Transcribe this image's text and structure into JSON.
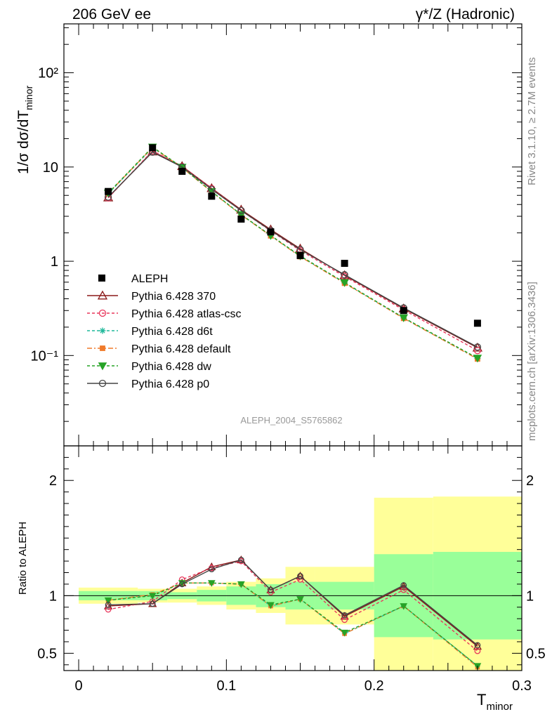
{
  "header": {
    "left": "206 GeV ee",
    "right": "γ*/Z (Hadronic)"
  },
  "side_labels": {
    "top": "Rivet 3.1.10, ≥ 2.7M events",
    "bottom": "mcplots.cern.ch [arXiv:1306.3436]"
  },
  "watermark": "ALEPH_2004_S5765862",
  "chart_data": {
    "type": "line",
    "xlabel": "T",
    "xlabel_sub": "minor",
    "ylabel_main": "1/σ  dσ/dT",
    "ylabel_main_sub": "minor",
    "ylabel_ratio": "Ratio to ALEPH",
    "xlim": [
      -0.01,
      0.3
    ],
    "ylim_main": [
      0.011,
      330
    ],
    "ylim_ratio": [
      0.35,
      2.3
    ],
    "yscale_main": "log",
    "x_ticks": [
      "0",
      "0.1",
      "0.2",
      "0.3"
    ],
    "y_ticks_main": [
      "10⁻¹",
      "1",
      "10",
      "10²"
    ],
    "y_ticks_ratio": [
      "0.5",
      "1",
      "2"
    ],
    "legend_position": "lower-left",
    "x": [
      0.02,
      0.05,
      0.07,
      0.09,
      0.11,
      0.13,
      0.15,
      0.18,
      0.22,
      0.27
    ],
    "bin_edges": [
      0.0,
      0.04,
      0.06,
      0.08,
      0.1,
      0.12,
      0.14,
      0.16,
      0.2,
      0.24,
      0.3
    ],
    "data": {
      "name": "ALEPH",
      "values": [
        5.5,
        16.0,
        9.0,
        4.9,
        2.8,
        2.05,
        1.15,
        0.95,
        0.3,
        0.22
      ]
    },
    "bands": {
      "stat": [
        [
          0.96,
          1.04
        ],
        [
          0.96,
          1.04
        ],
        [
          0.97,
          1.03
        ],
        [
          0.95,
          1.05
        ],
        [
          0.92,
          1.08
        ],
        [
          0.9,
          1.1
        ],
        [
          0.88,
          1.12
        ],
        [
          0.88,
          1.12
        ],
        [
          0.64,
          1.36
        ],
        [
          0.62,
          1.38
        ]
      ],
      "total": [
        [
          0.93,
          1.07
        ],
        [
          0.94,
          1.06
        ],
        [
          0.94,
          1.06
        ],
        [
          0.92,
          1.08
        ],
        [
          0.88,
          1.12
        ],
        [
          0.85,
          1.15
        ],
        [
          0.75,
          1.25
        ],
        [
          0.75,
          1.25
        ],
        [
          0.32,
          1.85
        ],
        [
          0.32,
          1.86
        ]
      ]
    },
    "series": [
      {
        "name": "Pythia 6.428 370",
        "color": "#8b1a1a",
        "dash": "",
        "marker": "triangle-open",
        "values": [
          4.75,
          14.6,
          10.2,
          5.95,
          3.52,
          2.17,
          1.36,
          0.71,
          0.315,
          0.121
        ],
        "ratio": [
          0.91,
          0.93,
          1.11,
          1.25,
          1.31,
          1.05,
          1.17,
          0.82,
          1.08,
          0.56
        ]
      },
      {
        "name": "Pythia 6.428 atlas-csc",
        "color": "#e8365b",
        "dash": "4,3",
        "marker": "circle-open",
        "values": [
          4.7,
          14.9,
          10.1,
          5.9,
          3.45,
          2.1,
          1.3,
          0.69,
          0.305,
          0.113
        ],
        "ratio": [
          0.88,
          0.95,
          1.14,
          1.24,
          1.3,
          1.03,
          1.14,
          0.79,
          1.05,
          0.52
        ]
      },
      {
        "name": "Pythia 6.428 d6t",
        "color": "#1fb89a",
        "dash": "4,3",
        "marker": "star",
        "values": [
          5.2,
          16.0,
          9.9,
          5.5,
          3.12,
          1.87,
          1.13,
          0.59,
          0.25,
          0.093
        ],
        "ratio": [
          0.96,
          1.0,
          1.11,
          1.11,
          1.1,
          0.91,
          0.97,
          0.67,
          0.91,
          0.39
        ]
      },
      {
        "name": "Pythia 6.428 default",
        "color": "#f07a2a",
        "dash": "7,3,2,3",
        "marker": "square",
        "values": [
          5.25,
          16.1,
          9.85,
          5.45,
          3.1,
          1.86,
          1.12,
          0.585,
          0.248,
          0.092
        ],
        "ratio": [
          0.96,
          1.01,
          1.11,
          1.11,
          1.1,
          0.91,
          0.97,
          0.67,
          0.91,
          0.38
        ]
      },
      {
        "name": "Pythia 6.428 dw",
        "color": "#26a326",
        "dash": "4,3",
        "marker": "triangle-down",
        "values": [
          5.3,
          16.3,
          9.95,
          5.5,
          3.13,
          1.88,
          1.14,
          0.595,
          0.252,
          0.094
        ],
        "ratio": [
          0.96,
          1.0,
          1.11,
          1.11,
          1.1,
          0.92,
          0.97,
          0.68,
          0.91,
          0.39
        ]
      },
      {
        "name": "Pythia 6.428 p0",
        "color": "#444444",
        "dash": "",
        "marker": "circle-open",
        "values": [
          4.8,
          14.4,
          10.0,
          5.8,
          3.45,
          2.12,
          1.33,
          0.72,
          0.32,
          0.123
        ],
        "ratio": [
          0.92,
          0.93,
          1.1,
          1.23,
          1.31,
          1.05,
          1.17,
          0.83,
          1.09,
          0.57
        ]
      }
    ]
  }
}
